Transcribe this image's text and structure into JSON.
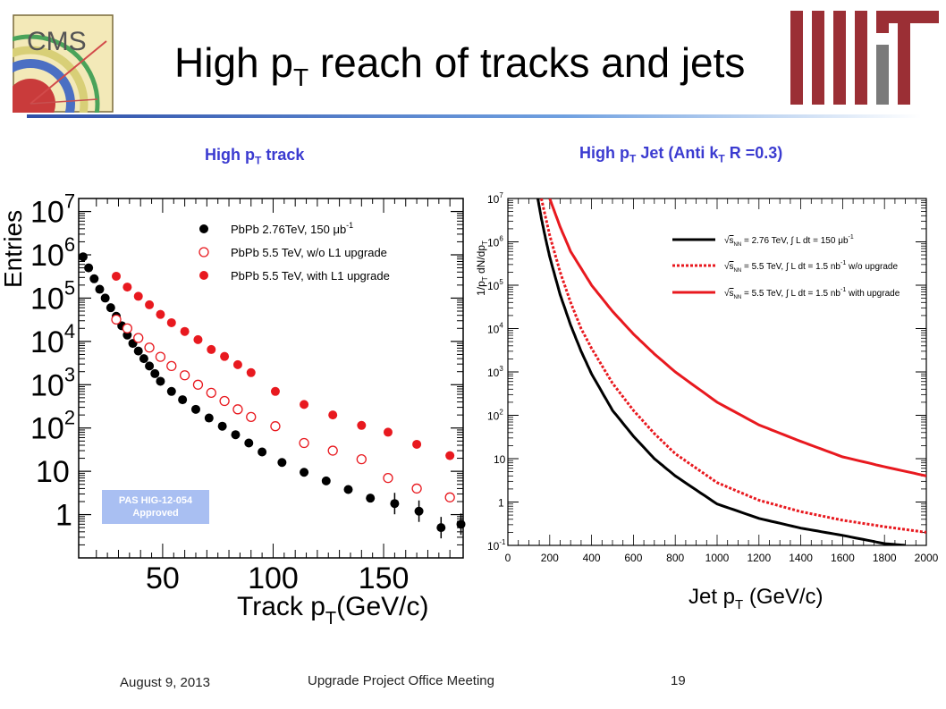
{
  "header": {
    "title_main": "High p",
    "title_sub": "T",
    "title_rest": " reach of tracks and jets"
  },
  "left_panel": {
    "heading_main": "High p",
    "heading_sub": "T",
    "heading_rest": " track",
    "ylabel": "Entries",
    "xlabel_main": "Track p",
    "xlabel_sub": "T",
    "xlabel_rest": "(GeV/c)",
    "badge_line1": "PAS HIG-12-054",
    "badge_line2": "Approved",
    "yticks": [
      {
        "base": "10",
        "exp": "7",
        "value": 10000000.0
      },
      {
        "base": "10",
        "exp": "6",
        "value": 1000000.0
      },
      {
        "base": "10",
        "exp": "5",
        "value": 100000.0
      },
      {
        "base": "10",
        "exp": "4",
        "value": 10000.0
      },
      {
        "base": "10",
        "exp": "3",
        "value": 1000.0
      },
      {
        "base": "10",
        "exp": "2",
        "value": 100.0
      },
      {
        "base": "10",
        "exp": "",
        "value": 10
      },
      {
        "base": "1",
        "exp": "",
        "value": 1
      }
    ],
    "xticks": [
      "50",
      "100",
      "150"
    ],
    "legend": [
      {
        "label": "PbPb 2.76TeV, 150 μb",
        "sup": "-1",
        "marker": "filled",
        "color": "#000000"
      },
      {
        "label": "PbPb 5.5 TeV, w/o L1 upgrade",
        "sup": "",
        "marker": "open",
        "color": "#e8191f"
      },
      {
        "label": "PbPb 5.5 TeV, with L1 upgrade",
        "sup": "",
        "marker": "filled",
        "color": "#e8191f"
      }
    ]
  },
  "right_panel": {
    "heading_main": "High p",
    "heading_sub": "T",
    "heading_mid": " Jet (Anti k",
    "heading_sub2": "T",
    "heading_rest": " R =0.3)",
    "ylabel": "1/p_T dN/dp_T",
    "xlabel_main": "Jet p",
    "xlabel_sub": "T",
    "xlabel_rest": " (GeV/c)",
    "xticks": [
      "0",
      "200",
      "400",
      "600",
      "800",
      "1000",
      "1200",
      "1400",
      "1600",
      "1800",
      "2000"
    ],
    "yticks": [
      {
        "base": "10",
        "exp": "7"
      },
      {
        "base": "10",
        "exp": "6"
      },
      {
        "base": "10",
        "exp": "5"
      },
      {
        "base": "10",
        "exp": "4"
      },
      {
        "base": "10",
        "exp": "3"
      },
      {
        "base": "10",
        "exp": "2"
      },
      {
        "base": "10",
        "exp": ""
      },
      {
        "base": "1",
        "exp": ""
      },
      {
        "base": "10",
        "exp": "-1"
      }
    ],
    "legend": [
      {
        "sqrt": "s",
        "sub": "NN",
        "energy": " = 2.76 TeV,",
        "lumi": "L dt = 150 μb",
        "sup": "-1",
        "tail": "",
        "style": "solid",
        "color": "#000000"
      },
      {
        "sqrt": "s",
        "sub": "NN",
        "energy": " = 5.5 TeV,",
        "lumi": "L dt = 1.5  nb",
        "sup": "-1",
        "tail": " w/o upgrade",
        "style": "dotted",
        "color": "#e8191f"
      },
      {
        "sqrt": "s",
        "sub": "NN",
        "energy": " = 5.5 TeV,",
        "lumi": "L dt = 1.5  nb",
        "sup": "-1",
        "tail": " with upgrade",
        "style": "solid",
        "color": "#e8191f"
      }
    ]
  },
  "footer": {
    "date": "August 9, 2013",
    "meeting": "Upgrade Project Office Meeting",
    "page": "19"
  },
  "logos": {
    "cms_text": "CMS"
  },
  "chart_data": [
    {
      "type": "scatter",
      "title": "High pT track",
      "xlabel": "Track pT(GeV/c)",
      "ylabel": "Entries",
      "xlim": [
        12,
        186
      ],
      "ylim": [
        0.1,
        20000000.0
      ],
      "yscale": "log",
      "legend_position": "top-right",
      "series": [
        {
          "name": "PbPb 2.76TeV, 150 μb-1",
          "color": "#000000",
          "marker": "filled",
          "x": [
            14,
            16.5,
            19,
            21.5,
            24,
            26.5,
            29,
            31.5,
            34,
            36.5,
            39,
            41.5,
            44,
            46.5,
            49,
            54,
            59,
            65,
            71,
            77,
            83,
            89,
            95,
            104,
            114,
            124,
            134,
            144,
            155,
            166,
            176,
            185
          ],
          "y": [
            900000,
            500000,
            280000,
            160000,
            100000,
            60000,
            38000,
            23000,
            14000,
            9000,
            6000,
            4000,
            2700,
            1800,
            1200,
            700,
            450,
            270,
            170,
            110,
            70,
            45,
            28,
            16,
            9.5,
            6,
            3.8,
            2.4,
            1.8,
            1.2,
            0.5,
            0.6
          ]
        },
        {
          "name": "PbPb 5.5 TeV, w/o L1 upgrade",
          "color": "#e8191f",
          "marker": "open",
          "x": [
            29,
            34,
            39,
            44,
            49,
            54,
            60,
            66,
            72,
            78,
            84,
            90,
            101,
            114,
            127,
            140,
            152,
            165,
            180
          ],
          "y": [
            32000,
            20000,
            12000,
            7200,
            4400,
            2700,
            1650,
            1000,
            650,
            420,
            270,
            180,
            110,
            45,
            30,
            19,
            7,
            4,
            2.5
          ]
        },
        {
          "name": "PbPb 5.5 TeV, with L1 upgrade",
          "color": "#e8191f",
          "marker": "filled",
          "x": [
            29,
            34,
            39,
            44,
            49,
            54,
            60,
            66,
            72,
            78,
            84,
            90,
            101,
            114,
            127,
            140,
            152,
            165,
            180
          ],
          "y": [
            320000,
            180000,
            110000,
            70000,
            42000,
            27000,
            17000,
            11000,
            6500,
            4500,
            2900,
            1900,
            700,
            350,
            200,
            115,
            80,
            42,
            23
          ]
        }
      ]
    },
    {
      "type": "line",
      "title": "High pT Jet (Anti kT R =0.3)",
      "xlabel": "Jet pT (GeV/c)",
      "ylabel": "1/pT dN/dpT",
      "xlim": [
        0,
        2000
      ],
      "ylim": [
        0.1,
        10000000.0
      ],
      "yscale": "log",
      "legend_position": "top-right",
      "series": [
        {
          "name": "√sNN = 2.76 TeV, ∫L dt = 150 μb-1",
          "color": "#000000",
          "style": "solid",
          "x": [
            140,
            160,
            180,
            200,
            250,
            300,
            350,
            400,
            500,
            600,
            700,
            800,
            1000,
            1200,
            1400,
            1600,
            1800,
            1900
          ],
          "y": [
            12000000.0,
            3500000.0,
            1200000.0,
            450000.0,
            60000.0,
            12000.0,
            3000,
            900,
            130,
            33,
            10,
            4,
            0.9,
            0.42,
            0.25,
            0.17,
            0.11,
            0.1
          ]
        },
        {
          "name": "√sNN = 5.5 TeV, ∫L dt = 1.5 nb-1 w/o upgrade",
          "color": "#e8191f",
          "style": "dotted",
          "x": [
            160,
            200,
            250,
            300,
            350,
            400,
            500,
            600,
            700,
            800,
            1000,
            1200,
            1400,
            1600,
            1800,
            2000
          ],
          "y": [
            10000000.0,
            1400000.0,
            200000.0,
            40000.0,
            10000.0,
            3500,
            550,
            130,
            38,
            13,
            2.8,
            1.1,
            0.6,
            0.38,
            0.27,
            0.2
          ]
        },
        {
          "name": "√sNN = 5.5 TeV, ∫L dt = 1.5 nb-1 with upgrade",
          "color": "#e8191f",
          "style": "solid",
          "x": [
            200,
            250,
            300,
            400,
            500,
            600,
            700,
            800,
            1000,
            1200,
            1400,
            1600,
            1800,
            2000
          ],
          "y": [
            10000000.0,
            2200000.0,
            600000.0,
            100000.0,
            25000.0,
            7500,
            2600,
            1000,
            200,
            60,
            25,
            11,
            6.5,
            4
          ]
        }
      ]
    }
  ]
}
